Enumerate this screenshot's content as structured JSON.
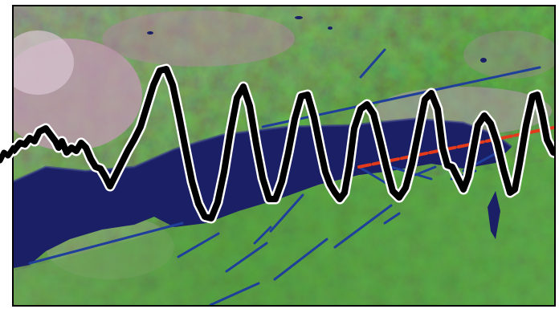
{
  "image": {
    "type": "satellite-image-with-seismic-trace",
    "colors": {
      "land_green": "#4f9a3a",
      "land_pink": "#b58aa4",
      "water": "#1b1f66",
      "fault_line": "#1f3f9a",
      "highlight_fault": "#e23a1a",
      "trace": "#000000",
      "frame": "#000000"
    },
    "features": [
      "water-body",
      "land",
      "fault-lines",
      "highlighted-fault",
      "seismic-waveform"
    ]
  }
}
